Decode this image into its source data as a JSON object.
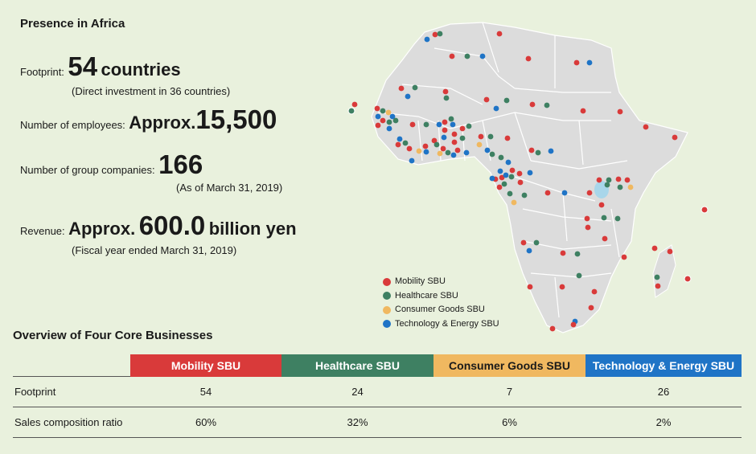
{
  "title": "Presence in Africa",
  "stats": {
    "footprint_label": "Footprint:",
    "footprint_value": "54",
    "footprint_unit": "countries",
    "footprint_note": "(Direct investment in 36 countries)",
    "employees_label": "Number of employees:",
    "employees_prefix": "Approx.",
    "employees_value": "15,500",
    "companies_label": "Number of group companies:",
    "companies_value": "166",
    "companies_note": "(As of March 31, 2019)",
    "revenue_label": "Revenue:",
    "revenue_prefix": "Approx.",
    "revenue_value": "600.0",
    "revenue_unit": "billion yen",
    "revenue_note": "(Fiscal year ended March 31, 2019)"
  },
  "legend": [
    {
      "label": "Mobility SBU",
      "color": "#d93a3a"
    },
    {
      "label": "Healthcare SBU",
      "color": "#3e8062"
    },
    {
      "label": "Consumer Goods SBU",
      "color": "#f0b860"
    },
    {
      "label": "Technology & Energy SBU",
      "color": "#1f74c6"
    }
  ],
  "overview_title": "Overview of Four Core Businesses",
  "table": {
    "columns": [
      {
        "label": "Mobility SBU",
        "color": "#d93a3a"
      },
      {
        "label": "Healthcare SBU",
        "color": "#3e8062"
      },
      {
        "label": "Consumer Goods SBU",
        "color": "#f0b860"
      },
      {
        "label": "Technology & Energy SBU",
        "color": "#1f74c6"
      }
    ],
    "rows": [
      {
        "label": "Footprint",
        "values": [
          "54",
          "24",
          "7",
          "26"
        ]
      },
      {
        "label": "Sales composition ratio",
        "values": [
          "60%",
          "32%",
          "6%",
          "2%"
        ]
      }
    ]
  },
  "colors": {
    "background": "#e9f1dd",
    "land": "#dcdcdc",
    "border": "#ffffff",
    "lake": "#a8d6ea"
  }
}
